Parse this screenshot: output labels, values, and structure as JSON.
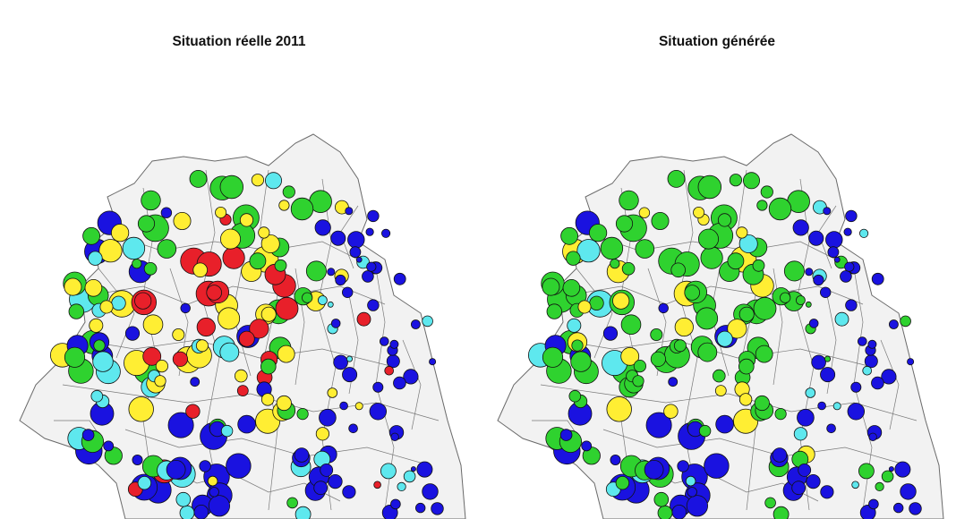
{
  "maps": [
    {
      "title": "Situation réelle 2011",
      "mix": [
        [
          0.17,
          "#2fd22f"
        ],
        [
          0.16,
          "#5ee8ee"
        ],
        [
          0.17,
          "#ffee33"
        ],
        [
          0.22,
          "#e8202a"
        ],
        [
          0.28,
          "#1a12e0"
        ]
      ]
    },
    {
      "title": "Situation générée",
      "mix": [
        [
          0.55,
          "#2fd22f"
        ],
        [
          0.1,
          "#5ee8ee"
        ],
        [
          0.12,
          "#ffee33"
        ],
        [
          0.0,
          "#e8202a"
        ],
        [
          0.23,
          "#1a12e0"
        ]
      ]
    }
  ],
  "colors": {
    "green": "#2fd22f",
    "cyan": "#5ee8ee",
    "yellow": "#ffee33",
    "red": "#e8202a",
    "blue": "#1a12e0"
  }
}
